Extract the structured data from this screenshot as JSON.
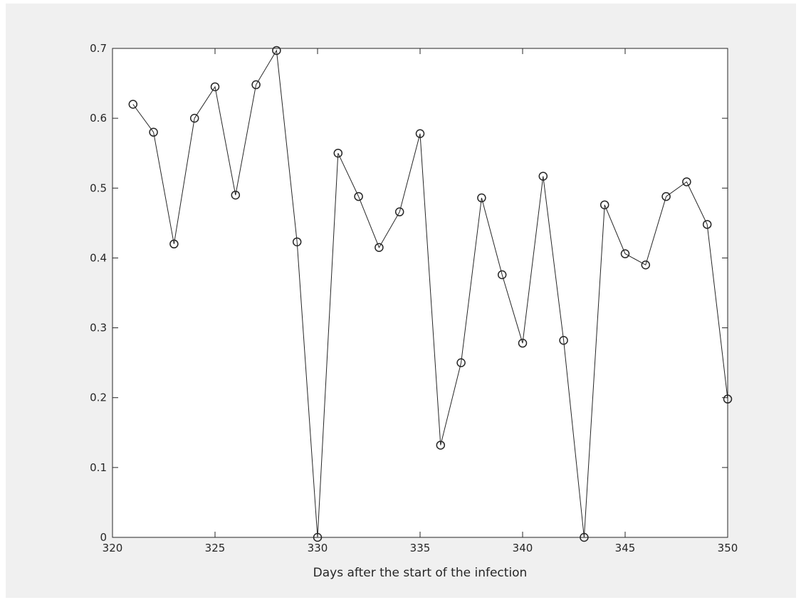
{
  "chart_data": {
    "type": "line",
    "title": "",
    "xlabel": "Days after the start of the infection",
    "ylabel": "",
    "xlim": [
      320,
      350
    ],
    "ylim": [
      0,
      0.7
    ],
    "xticks": [
      320,
      325,
      330,
      335,
      340,
      345,
      350
    ],
    "yticks": [
      0,
      0.1,
      0.2,
      0.3,
      0.4,
      0.5,
      0.6,
      0.7
    ],
    "grid": false,
    "marker": "circle",
    "colors": {
      "line": "#262626",
      "axes_bg": "#ffffff",
      "figure_bg": "#f0f0f0"
    },
    "series": [
      {
        "x": [
          321,
          322,
          323,
          324,
          325,
          326,
          327,
          328,
          329,
          330,
          331,
          332,
          333,
          334,
          335,
          336,
          337,
          338,
          339,
          340,
          341,
          342,
          343,
          344,
          345,
          346,
          347,
          348,
          349,
          350
        ],
        "y": [
          0.62,
          0.58,
          0.42,
          0.6,
          0.645,
          0.49,
          0.648,
          0.697,
          0.423,
          0.0,
          0.55,
          0.488,
          0.415,
          0.466,
          0.578,
          0.132,
          0.25,
          0.486,
          0.376,
          0.278,
          0.517,
          0.282,
          0.0,
          0.476,
          0.406,
          0.39,
          0.488,
          0.509,
          0.448,
          0.198
        ]
      }
    ]
  }
}
